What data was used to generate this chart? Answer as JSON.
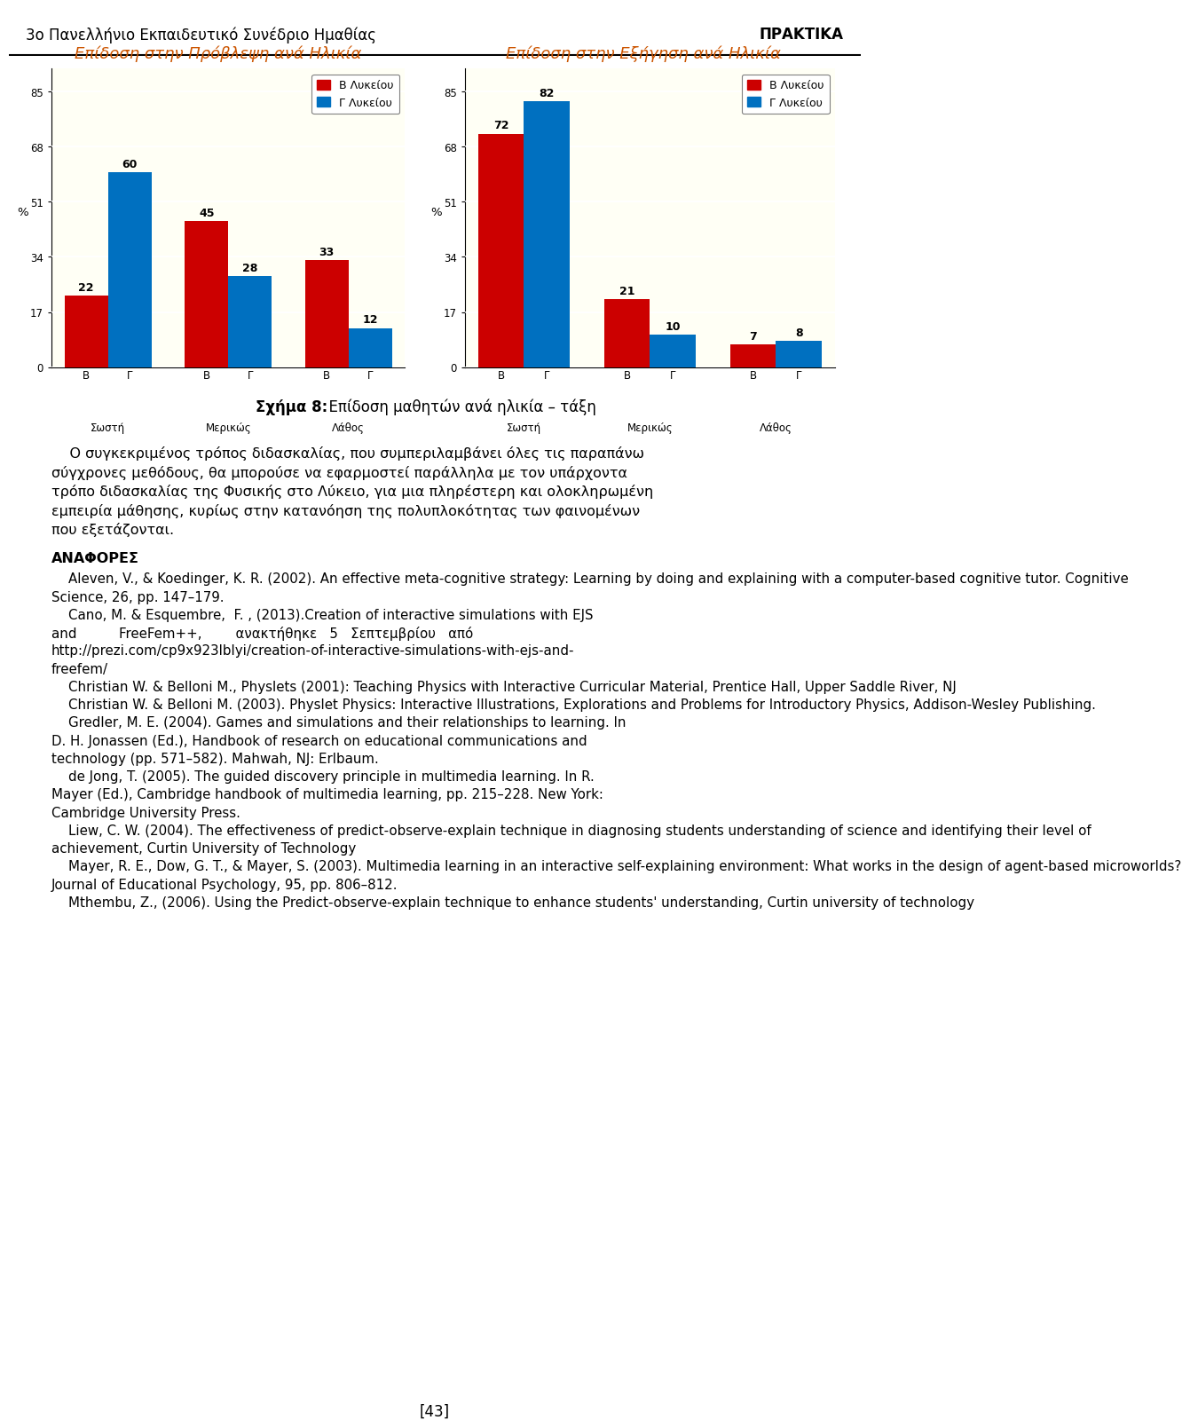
{
  "header_left": "3o Πανελλήνιο Εκπαιδευτικό Συνέδριο Ημαθίας",
  "header_right": "ΠΡΑΚΤΙΚΑ",
  "chart1_title": "Επίδοση στην Πρόβλεψη ανά Ηλικία",
  "chart2_title": "Επίδοση στην Εξήγηση ανά Ηλικία",
  "chart1_B_values": [
    22,
    45,
    33
  ],
  "chart1_G_values": [
    60,
    28,
    12
  ],
  "chart2_B_values": [
    72,
    21,
    7
  ],
  "chart2_G_values": [
    82,
    10,
    8
  ],
  "categories": [
    "Σωστή",
    "Μερικώς",
    "Λάθος"
  ],
  "yticks": [
    0,
    17,
    34,
    51,
    68,
    85
  ],
  "legend_B": "Β Λυκείου",
  "legend_G": "Γ Λυκείου",
  "color_B": "#cc0000",
  "color_G": "#0070c0",
  "chart_bg": "#fffff5",
  "figure_caption_bold": "Σχήμα 8:",
  "figure_caption_normal": "  Επίδοση μαθητών ανά ηλικία – τάξη",
  "body_lines": [
    "    Ο συγκεκριμένος τρόπος διδασκαλίας, που συμπεριλαμβάνει όλες τις παραπάνω",
    "σύγχρονες μεθόδους, θα μπορούσε να εφαρμοστεί παράλληλα με τον υπάρχοντα",
    "τρόπο διδασκαλίας της Φυσικής στο Λύκειο, για μια πληρέστερη και ολοκληρωμένη",
    "εμπειρία μάθησης, κυρίως στην κατανόηση της πολυπλοκότητας των φαινομένων",
    "που εξετάζονται."
  ],
  "references_title": "ΑΝΑΦΟΡΕΣ",
  "ref_lines": [
    "    Aleven, V., & Koedinger, K. R. (2002). An effective meta-cognitive strategy: Learning by doing and explaining with a computer-based cognitive tutor. Cognitive",
    "Science, 26, pp. 147–179.",
    "    Cano, M. & Esquembre,  F. , (2013).Creation of interactive simulations with EJS",
    "and          FreeFem++,        ανακτήθηκε   5   Σεπτεμβρίου   από",
    "http://prezi.com/cp9x923lblyi/creation-of-interactive-simulations-with-ejs-and-",
    "freefem/",
    "    Christian W. & Belloni M., Physlets (2001): Teaching Physics with Interactive Curricular Material, Prentice Hall, Upper Saddle River, NJ",
    "    Christian W. & Belloni M. (2003). Physlet Physics: Interactive Illustrations, Explorations and Problems for Introductory Physics, Addison-Wesley Publishing.",
    "    Gredler, M. E. (2004). Games and simulations and their relationships to learning. In",
    "D. H. Jonassen (Ed.), Handbook of research on educational communications and",
    "technology (pp. 571–582). Mahwah, NJ: Erlbaum.",
    "    de Jong, T. (2005). The guided discovery principle in multimedia learning. In R.",
    "Mayer (Ed.), Cambridge handbook of multimedia learning, pp. 215–228. New York:",
    "Cambridge University Press.",
    "    Liew, C. W. (2004). The effectiveness of predict-observe-explain technique in diagnosing students understanding of science and identifying their level of",
    "achievement, Curtin University of Technology",
    "    Mayer, R. E., Dow, G. T., & Mayer, S. (2003). Multimedia learning in an interactive self-explaining environment: What works in the design of agent-based microworlds?",
    "Journal of Educational Psychology, 95, pp. 806–812.",
    "    Mthembu, Z., (2006). Using the Predict-observe-explain technique to enhance students' understanding, Curtin university of technology"
  ],
  "page_number": "[43]"
}
